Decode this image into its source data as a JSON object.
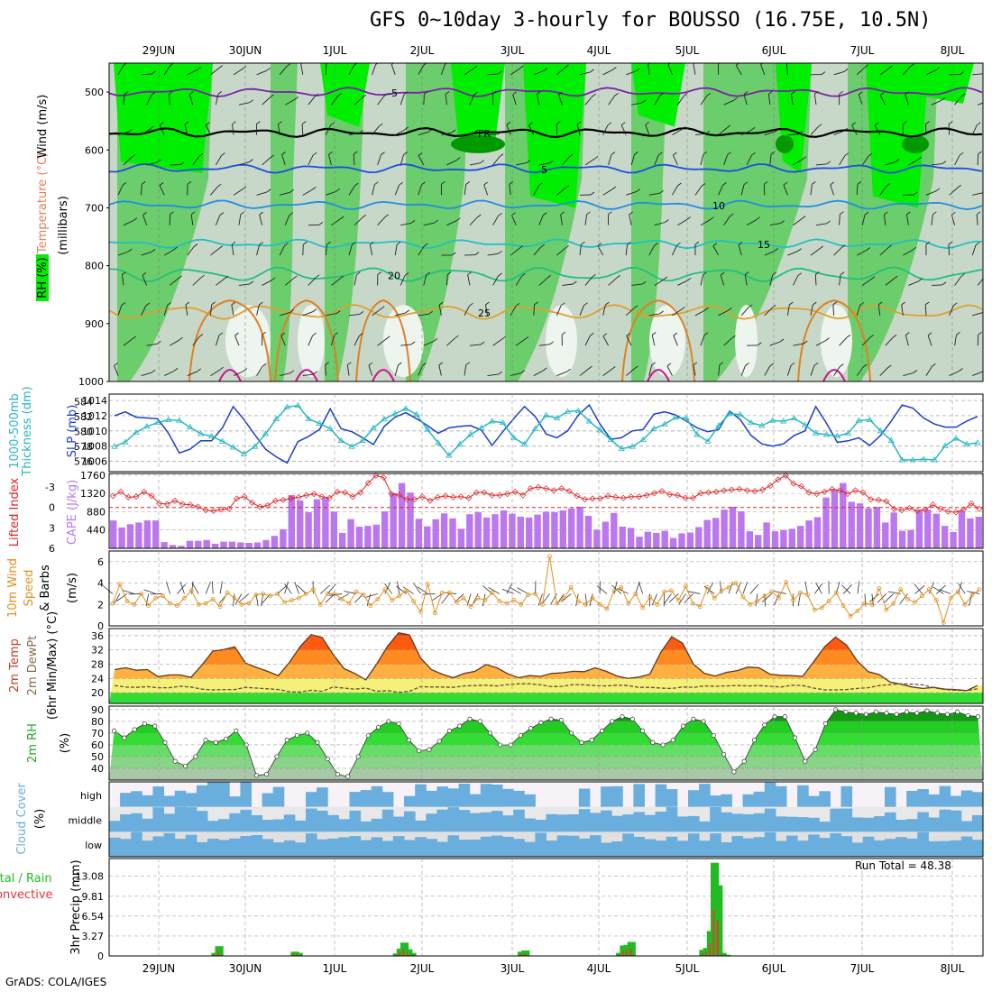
{
  "title": "GFS 0~10day 3-hourly for BOUSSO (16.75E, 10.5N)",
  "footer": "GrADS: COLA/IGES",
  "run_total_label": "Run Total = 48.38",
  "colors": {
    "rh_light": "#c8d8c8",
    "rh_mid": "#66cc66",
    "rh_high": "#00ee00",
    "rh_dark": "#009900",
    "slp": "#1a3fc8",
    "thickness": "#26b8c0",
    "lifted": "#d22",
    "cape": "#bb77ee",
    "wind": "#e09020",
    "temp_hot": "#e23c00",
    "temp_warm": "#ff8a20",
    "dew": "#f5f07a",
    "dew_green": "#33dd33",
    "rh2m": "#22bb22",
    "cloud": "#6aaede",
    "precip_total": "#22bb22",
    "precip_conv": "#ee3333"
  },
  "chart_data": [
    {
      "type": "heatmap",
      "name": "upper-air",
      "panel_labels": [
        "RH (%)",
        "Temperature (°C)",
        "Wind (m/s)"
      ],
      "ylabel": "(millibars)",
      "yticks": [
        500,
        600,
        700,
        800,
        900,
        1000
      ],
      "ylim": [
        1000,
        450
      ],
      "x_dates": [
        "29JUN",
        "30JUN",
        "1JUL",
        "2JUL",
        "3JUL",
        "4JUL",
        "5JUL",
        "6JUL",
        "7JUL",
        "8JUL"
      ],
      "contour_labels": [
        "-5",
        "FR",
        "5",
        "10",
        "15",
        "20",
        "25"
      ],
      "isotherms": [
        {
          "label": "-5",
          "level_mb": 500,
          "color": "#7a22aa"
        },
        {
          "label": "FR",
          "level_mb": 570,
          "color": "#000000"
        },
        {
          "label": "5",
          "level_mb": 632,
          "color": "#1a4ee0"
        },
        {
          "label": "10",
          "level_mb": 695,
          "color": "#1e90e0"
        },
        {
          "label": "15",
          "level_mb": 762,
          "color": "#20c0c0"
        },
        {
          "label": "20",
          "level_mb": 815,
          "color": "#20c080"
        },
        {
          "label": "25",
          "level_mb": 880,
          "color": "#e0a030"
        }
      ]
    },
    {
      "type": "line",
      "name": "slp-thickness",
      "labels": [
        "1000-500mb",
        "Thickness (dm)",
        "SLP (mb)"
      ],
      "left_ticks": [
        576,
        578,
        580,
        582,
        584
      ],
      "right_ticks": [
        1006,
        1008,
        1010,
        1012,
        1014
      ],
      "slp": [
        1012,
        1012.5,
        1011.8,
        1011.7,
        1011.6,
        1009.7,
        1007.1,
        1007.6,
        1008.7,
        1008.7,
        1010.4,
        1013.2,
        1011.5,
        1009.5,
        1007.6,
        1006.6,
        1005.8,
        1008.6,
        1009.3,
        1010.2,
        1012.9,
        1010.3,
        1009.9,
        1009.1,
        1008.2,
        1010.6,
        1011.8,
        1012.4,
        1011.6,
        1010.7,
        1009.7,
        1010.4,
        1010.6,
        1010.7,
        1010.1,
        1008.1,
        1009.9,
        1011.6,
        1013.2,
        1011.9,
        1009.6,
        1009.1,
        1010.0,
        1012.1,
        1013.4,
        1010.9,
        1008.9,
        1009.1,
        1010.0,
        1010.2,
        1012.2,
        1012.5,
        1012.1,
        1011.3,
        1010.4,
        1009.9,
        1010.2,
        1012.6,
        1011.5,
        1009.4,
        1008.3,
        1008.0,
        1008.3,
        1009.4,
        1010.0,
        1013.2,
        1011.0,
        1008.5,
        1008.7,
        1009.1,
        1008.1,
        1009.4,
        1011.3,
        1013.4,
        1013.0,
        1011.7,
        1010.9,
        1010.5,
        1010.5,
        1011.3,
        1011.9
      ],
      "thickness": [
        578.0,
        578.6,
        579.9,
        580.7,
        581.2,
        581.6,
        581.5,
        580.6,
        579.7,
        579.4,
        578.7,
        577.9,
        577.0,
        578.0,
        579.7,
        581.7,
        583.3,
        583.5,
        581.7,
        581.1,
        580.4,
        578.8,
        578.0,
        578.8,
        580.5,
        581.7,
        582.4,
        583.1,
        582.3,
        580.3,
        578.5,
        576.8,
        578.3,
        579.6,
        580.5,
        581.4,
        581.2,
        579.2,
        578.3,
        580.4,
        582.2,
        581.8,
        582.7,
        582.8,
        581.4,
        580.2,
        578.9,
        577.7,
        578.0,
        578.9,
        580.4,
        581.0,
        581.9,
        581.8,
        579.6,
        578.7,
        580.8,
        582.4,
        582.3,
        581.2,
        580.8,
        581.5,
        581.4,
        581.8,
        580.9,
        579.8,
        579.6,
        579.4,
        579.8,
        581.5,
        581.6,
        580.1,
        578.8,
        576.2,
        576.2,
        576.3,
        576.2,
        578.1,
        579.1,
        578.3,
        578.5
      ]
    },
    {
      "type": "bar",
      "name": "cape-lifted-index",
      "labels": [
        "Lifted Index",
        "CAPE (J/kg)"
      ],
      "left_ticks": [
        "-3",
        "0",
        "3",
        "6"
      ],
      "right_ticks": [
        440,
        880,
        1320,
        1760
      ],
      "cape": [
        670,
        500,
        580,
        620,
        670,
        670,
        150,
        80,
        60,
        180,
        180,
        200,
        110,
        160,
        160,
        140,
        130,
        140,
        200,
        300,
        460,
        1280,
        1150,
        870,
        1180,
        1220,
        880,
        370,
        700,
        520,
        540,
        570,
        890,
        1330,
        1570,
        1340,
        710,
        530,
        700,
        840,
        720,
        470,
        820,
        870,
        740,
        820,
        910,
        830,
        760,
        740,
        810,
        880,
        870,
        910,
        960,
        1000,
        780,
        450,
        640,
        850,
        520,
        490,
        280,
        400,
        370,
        420,
        250,
        360,
        380,
        510,
        680,
        730,
        930,
        1000,
        890,
        410,
        320,
        620,
        410,
        440,
        470,
        540,
        670,
        750,
        1220,
        1400,
        1570,
        1120,
        1080,
        960,
        1000,
        620,
        860,
        420,
        440,
        910,
        930,
        830,
        540,
        390,
        900,
        720,
        760
      ],
      "lifted_index": [
        -1.7,
        -2.3,
        -1.5,
        -1.6,
        -2.3,
        -1.7,
        -0.6,
        -0.5,
        -1.0,
        -0.5,
        -0.4,
        -0.1,
        0.4,
        0.5,
        0.3,
        0.2,
        -1.3,
        -1.6,
        -0.7,
        -0.1,
        -0.3,
        -1.0,
        -1.1,
        -1.3,
        -1.5,
        -1.8,
        -2.0,
        -1.6,
        -1.4,
        -2.3,
        -2.2,
        -1.6,
        -2.2,
        -3.6,
        -4.7,
        -4.4,
        -2.0,
        -1.8,
        -1.2,
        -1.2,
        -1.6,
        -1.0,
        -1.5,
        -1.7,
        -1.5,
        -1.6,
        -1.4,
        -2.2,
        -2.2,
        -1.8,
        -1.8,
        -2.0,
        -2.3,
        -1.8,
        -2.8,
        -3.0,
        -2.8,
        -2.5,
        -2.8,
        -2.4,
        -1.7,
        -1.2,
        -1.3,
        -1.3,
        -1.7,
        -1.5,
        -1.4,
        -1.6,
        -1.6,
        -1.8,
        -2.1,
        -2.4,
        -1.9,
        -1.8,
        -1.4,
        -1.4,
        -2.1,
        -2.2,
        -2.3,
        -2.5,
        -2.6,
        -2.7,
        -2.5,
        -2.4,
        -2.6,
        -3.2,
        -4.1,
        -4.7,
        -3.5,
        -3.1,
        -2.2,
        -2.0,
        -2.3,
        -2.7,
        -2.5,
        -2.0,
        -2.5,
        -2.2,
        -1.2,
        -1.1,
        -0.9,
        0.2,
        0.4,
        0.1,
        0.5,
        0.3,
        -0.4,
        0.2,
        0.6,
        0.7,
        0.3,
        -0.6,
        0.2
      ]
    },
    {
      "type": "line",
      "name": "10m-wind",
      "labels": [
        "10m Wind",
        "Speed",
        "& Barbs",
        "(m/s)"
      ],
      "yticks": [
        0,
        2,
        4,
        6
      ],
      "ylim": [
        0,
        7
      ],
      "speed": [
        2.1,
        3.9,
        2.3,
        2.0,
        3.0,
        1.9,
        2.6,
        2.8,
        2.1,
        1.9,
        2.6,
        3.3,
        2.0,
        2.1,
        2.5,
        1.8,
        3.1,
        2.6,
        2.0,
        2.1,
        2.9,
        3.0,
        2.8,
        3.0,
        2.2,
        2.4,
        2.6,
        3.0,
        3.4,
        2.0,
        3.0,
        3.0,
        2.5,
        2.1,
        3.2,
        2.9,
        1.9,
        2.5,
        3.4,
        2.4,
        2.8,
        3.3,
        2.3,
        1.3,
        3.9,
        1.2,
        3.1,
        3.1,
        2.2,
        2.6,
        1.8,
        2.6,
        2.4,
        3.1,
        2.3,
        2.1,
        2.4,
        2.0,
        2.9,
        3.0,
        2.0,
        6.5,
        2.1,
        2.6,
        3.6,
        2.3,
        2.0,
        2.6,
        2.0,
        1.6,
        3.3,
        3.6,
        2.1,
        3.0,
        1.7,
        2.7,
        2.0,
        3.2,
        3.3,
        2.4,
        3.7,
        2.1,
        1.8,
        3.6,
        2.6,
        3.3,
        3.6,
        4.0,
        2.7,
        2.0,
        2.3,
        2.8,
        3.2,
        2.6,
        4.1,
        2.4,
        3.1,
        2.9,
        1.5,
        1.7,
        2.3,
        3.1,
        1.9,
        0.9,
        1.4,
        2.1,
        2.0,
        3.5,
        1.5,
        2.1,
        3.4,
        2.5,
        2.2,
        2.8,
        3.4,
        2.4,
        0.3,
        2.6,
        3.2,
        2.0,
        2.9,
        3.4
      ]
    },
    {
      "type": "area",
      "name": "2m-temp",
      "labels": [
        "2m Temp",
        "2m DewPt",
        "(6hr Min/Max) (°C)"
      ],
      "yticks": [
        20,
        24,
        28,
        32,
        36
      ],
      "ylim": [
        17,
        38
      ],
      "temp": [
        26.5,
        27.0,
        26.3,
        26.5,
        24.5,
        25.0,
        25.0,
        24.3,
        27.8,
        31.7,
        32.1,
        32.9,
        28.3,
        27.1,
        26.0,
        24.8,
        28.5,
        33.0,
        36.3,
        35.5,
        30.8,
        26.8,
        25.4,
        23.6,
        28.1,
        33.1,
        36.8,
        36.2,
        29.8,
        26.5,
        25.2,
        24.2,
        25.4,
        26.0,
        27.9,
        27.0,
        25.3,
        24.2,
        24.8,
        24.6,
        25.4,
        25.6,
        26.0,
        25.9,
        27.0,
        26.0,
        24.7,
        24.0,
        24.4,
        25.2,
        31.3,
        35.7,
        33.9,
        28.0,
        25.4,
        24.7,
        25.7,
        26.2,
        27.2,
        27.0,
        25.2,
        24.9,
        24.8,
        24.6,
        28.7,
        32.9,
        35.6,
        33.4,
        28.9,
        25.9,
        25.1,
        23.0,
        22.4,
        21.6,
        21.2,
        21.5,
        21.0,
        20.9,
        20.6,
        22.0
      ],
      "dewpoint": [
        22.0,
        21.6,
        21.5,
        21.7,
        21.4,
        21.4,
        21.8,
        21.6,
        21.0,
        20.8,
        20.9,
        20.9,
        21.5,
        21.3,
        21.1,
        20.9,
        20.3,
        20.2,
        20.7,
        20.4,
        21.6,
        21.3,
        21.0,
        21.3,
        20.4,
        20.6,
        20.1,
        20.4,
        21.7,
        21.6,
        21.6,
        21.5,
        21.9,
        22.0,
        22.1,
        21.9,
        22.3,
        22.5,
        22.5,
        22.2,
        21.7,
        21.8,
        22.3,
        22.2,
        22.0,
        21.9,
        22.1,
        22.0,
        21.5,
        21.5,
        21.3,
        21.2,
        21.6,
        21.5,
        21.9,
        21.8,
        21.9,
        22.0,
        21.9,
        22.0,
        21.8,
        21.6,
        22.1,
        22.0,
        21.3,
        20.8,
        20.8,
        20.9,
        21.2,
        21.4,
        22.0,
        22.3,
        22.5,
        22.4,
        22.2,
        21.4,
        20.9,
        20.7,
        20.6,
        21.1
      ]
    },
    {
      "type": "area",
      "name": "2m-rh",
      "labels": [
        "2m RH",
        "(%)"
      ],
      "yticks": [
        40,
        50,
        60,
        70,
        80,
        90
      ],
      "ylim": [
        30,
        93
      ],
      "rh": [
        72,
        66,
        73,
        78,
        76,
        62,
        46,
        42,
        50,
        64,
        62,
        65,
        72,
        60,
        34,
        35,
        50,
        64,
        68,
        70,
        62,
        48,
        35,
        33,
        50,
        68,
        75,
        80,
        78,
        64,
        55,
        56,
        63,
        72,
        76,
        82,
        80,
        70,
        60,
        60,
        68,
        74,
        79,
        82,
        81,
        70,
        62,
        64,
        72,
        80,
        84,
        82,
        72,
        62,
        60,
        64,
        76,
        82,
        80,
        68,
        52,
        37,
        46,
        64,
        77,
        84,
        84,
        66,
        46,
        56,
        78,
        90,
        88,
        87,
        86,
        88,
        87,
        86,
        88,
        87,
        89,
        87,
        86,
        88,
        85,
        84
      ]
    },
    {
      "type": "heatmap",
      "name": "cloud-cover",
      "labels": [
        "Cloud Cover",
        "(%)"
      ],
      "rows": [
        "high",
        "middle",
        "low"
      ]
    },
    {
      "type": "bar",
      "name": "3hr-precip",
      "labels": [
        "Total / Rain",
        "Convective",
        "3hr Precip (mm)"
      ],
      "yticks": [
        0,
        3.27,
        6.54,
        9.81,
        13.08
      ],
      "ylim": [
        0,
        16
      ],
      "total": [
        0,
        0,
        0,
        0,
        0,
        0,
        0,
        0,
        0,
        0,
        0,
        0,
        0,
        0,
        0,
        0,
        0,
        0,
        0,
        0,
        0,
        0,
        0,
        0,
        0,
        0,
        0,
        0.5,
        1.6,
        0,
        0,
        0,
        0,
        0,
        0,
        0,
        0,
        0,
        0,
        0,
        0,
        0,
        0,
        0,
        0,
        0,
        0,
        0,
        0.7,
        0.5,
        0,
        0,
        0,
        0,
        0,
        0,
        0,
        0,
        0,
        0,
        0,
        0,
        0,
        0,
        0,
        0,
        0,
        0,
        0,
        0,
        0,
        0,
        0,
        0,
        0,
        0.4,
        1.2,
        2.2,
        1.1,
        0.5,
        0,
        0,
        0,
        0,
        0,
        0,
        0,
        0,
        0,
        0,
        0,
        0,
        0,
        0,
        0,
        0,
        0,
        0,
        0,
        0,
        0,
        0,
        0,
        0,
        0,
        0,
        0,
        0,
        0.7,
        0.9,
        0,
        0,
        0,
        0,
        0,
        0,
        0,
        0,
        0,
        0,
        0,
        0,
        0,
        0,
        0,
        0,
        0,
        0,
        0,
        0,
        0,
        0,
        0,
        0,
        0.5,
        1.7,
        1.8,
        2.3,
        0,
        0,
        0,
        0,
        0,
        0,
        0,
        0,
        0,
        0,
        0,
        0,
        0,
        0,
        0,
        0,
        0,
        0,
        1.0,
        1.3,
        4.1,
        15.3,
        11.6,
        0.5,
        0.2,
        0,
        0,
        0,
        0,
        0,
        0,
        0,
        0,
        0,
        0,
        0,
        0,
        0,
        0,
        0,
        0,
        0,
        0,
        0,
        0,
        0,
        0,
        0,
        0,
        0,
        0,
        0,
        0,
        0,
        0,
        0,
        0,
        0,
        0,
        0,
        0,
        0,
        0,
        0,
        0,
        0,
        0,
        0,
        0,
        0,
        0,
        0,
        0,
        0,
        0,
        0,
        0,
        0,
        0,
        0,
        0,
        0,
        0,
        0,
        0,
        0,
        0,
        0,
        0,
        0,
        0,
        0,
        0
      ],
      "convective": []
    }
  ]
}
